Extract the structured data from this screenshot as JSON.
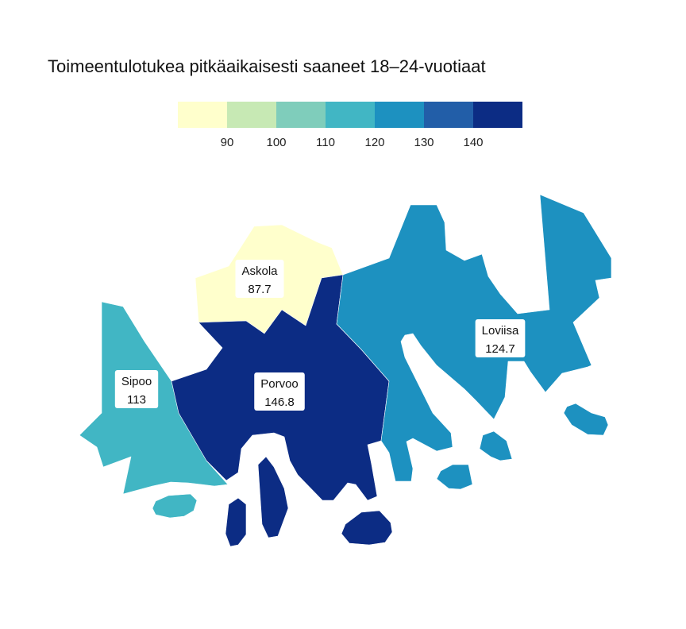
{
  "chart_data": {
    "type": "choropleth",
    "title": "Toimeentulotukea pitkäaikaisesti saaneet 18–24-vuotiaat",
    "legend": {
      "placement": "top-center",
      "breaks": [
        90,
        100,
        110,
        120,
        130,
        140
      ],
      "colors": [
        "#ffffcc",
        "#c7e9b4",
        "#7fcdbb",
        "#41b6c4",
        "#1d91c0",
        "#225ea8",
        "#0c2c84"
      ]
    },
    "regions": [
      {
        "name": "Askola",
        "value": 87.7
      },
      {
        "name": "Sipoo",
        "value": 113
      },
      {
        "name": "Porvoo",
        "value": 146.8
      },
      {
        "name": "Loviisa",
        "value": 124.7
      }
    ]
  }
}
